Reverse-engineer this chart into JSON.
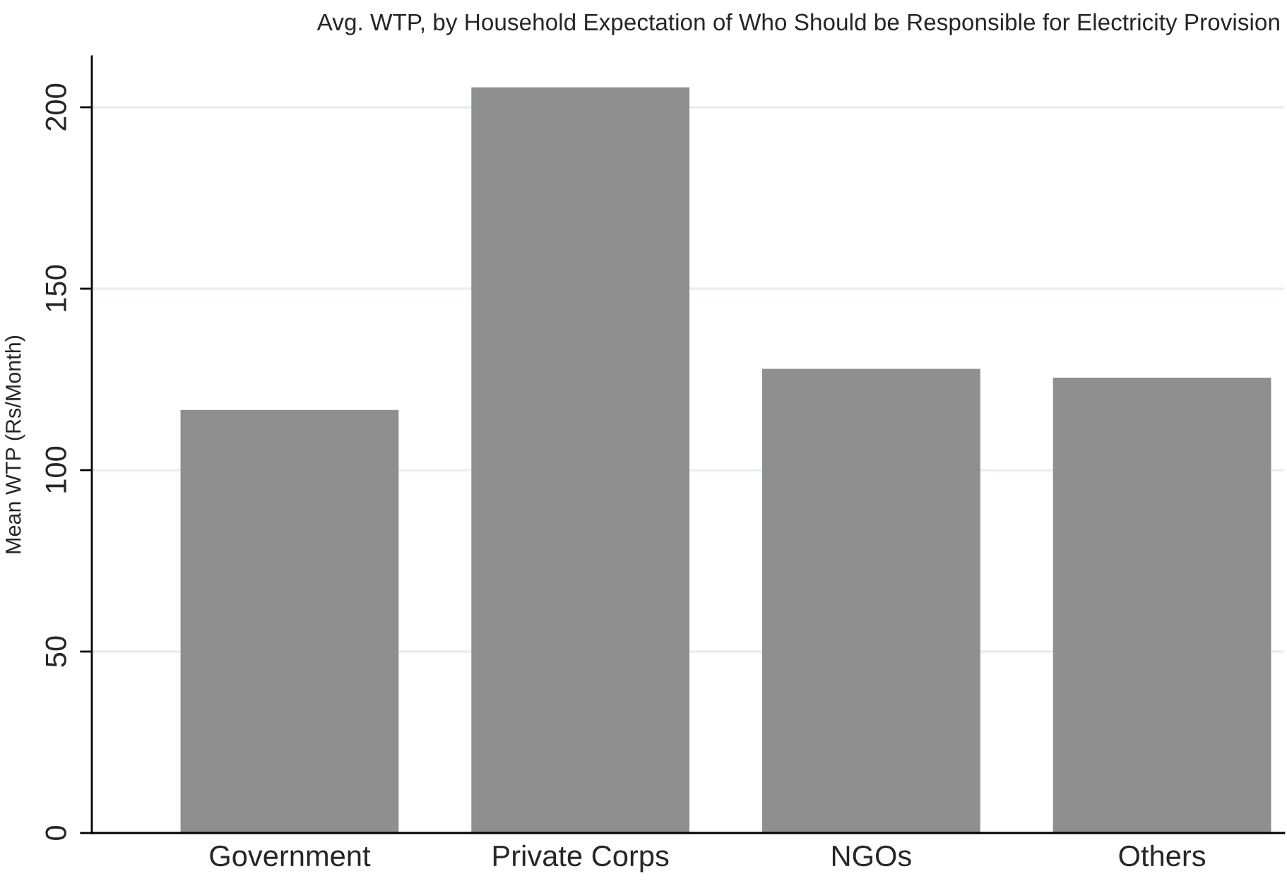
{
  "chart_data": {
    "type": "bar",
    "title": "Avg. WTP, by Household Expectation of Who Should be Responsible for Electricity Provision",
    "ylabel": "Mean WTP (Rs/Month)",
    "categories": [
      "Government",
      "Private Corps",
      "NGOs",
      "Others"
    ],
    "values": [
      116.6,
      205.5,
      127.9,
      125.5
    ],
    "color": "#8f8f8f",
    "ylim": [
      0,
      214
    ],
    "yticks": [
      0,
      50,
      100,
      150,
      200
    ],
    "grid": "y"
  }
}
